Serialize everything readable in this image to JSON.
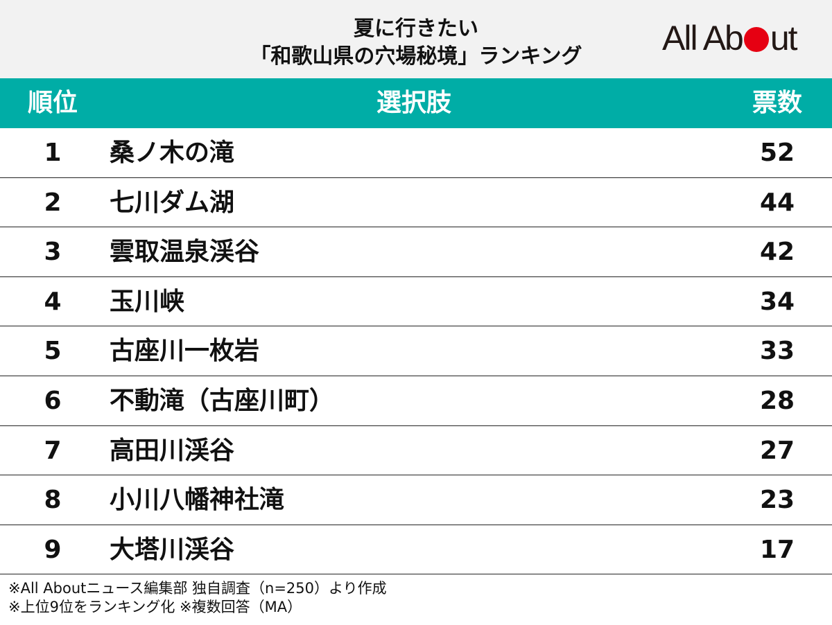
{
  "title": {
    "line1": "夏に行きたい",
    "line2": "「和歌山県の穴場秘境」ランキング"
  },
  "logo": {
    "text_before": "All Ab",
    "text_after": "ut",
    "dot_color": "#e60012"
  },
  "table": {
    "headers": {
      "rank": "順位",
      "choice": "選択肢",
      "votes": "票数"
    },
    "header_color": "#00ada6",
    "rows": [
      {
        "rank": "1",
        "name": "桑ノ木の滝",
        "votes": "52"
      },
      {
        "rank": "2",
        "name": "七川ダム湖",
        "votes": "44"
      },
      {
        "rank": "3",
        "name": "雲取温泉渓谷",
        "votes": "42"
      },
      {
        "rank": "4",
        "name": "玉川峡",
        "votes": "34"
      },
      {
        "rank": "5",
        "name": "古座川一枚岩",
        "votes": "33"
      },
      {
        "rank": "6",
        "name": "不動滝（古座川町）",
        "votes": "28"
      },
      {
        "rank": "7",
        "name": "高田川渓谷",
        "votes": "27"
      },
      {
        "rank": "8",
        "name": "小川八幡神社滝",
        "votes": "23"
      },
      {
        "rank": "9",
        "name": "大塔川渓谷",
        "votes": "17"
      }
    ]
  },
  "notes": {
    "line1": "※All Aboutニュース編集部 独自調査（n=250）より作成",
    "line2": "※上位9位をランキング化 ※複数回答（MA）"
  }
}
